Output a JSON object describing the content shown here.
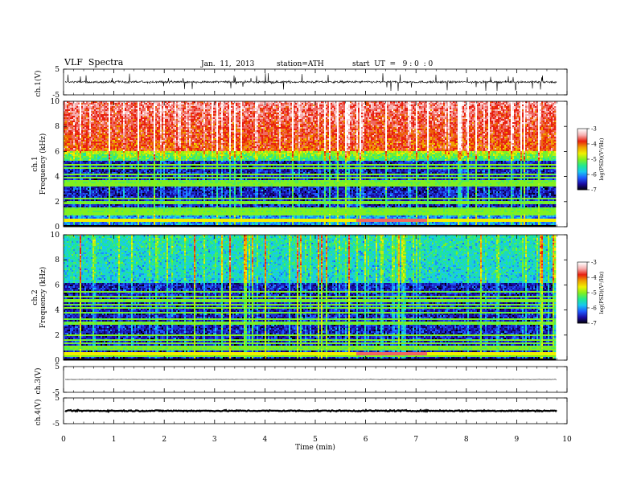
{
  "header": {
    "title": "VLF  Spectra",
    "date": "Jan.  11,  2013",
    "station": "station=ATH",
    "start": "start  UT  =   9 : 0  : 0"
  },
  "chart_data": [
    {
      "type": "line",
      "panel": "ch1-waveform",
      "ylabel": "ch.1(V)",
      "yticks": [
        "5",
        "-5"
      ],
      "ylim": [
        -5,
        5
      ],
      "description_values": {
        "baseline_V": 0,
        "typical_amplitude_V": 1,
        "spike_peak_V": 3.5
      }
    },
    {
      "type": "heatmap",
      "panel": "ch1-spectrogram",
      "ylabel": "ch.1\nFrequency  (kHz)",
      "yticks": [
        "0",
        "2",
        "4",
        "6",
        "8",
        "10"
      ],
      "ylim": [
        0,
        10
      ],
      "colorbar": {
        "label": "log(PSD)(V²/Hz)",
        "ticks": [
          "-3",
          "-4",
          "-5",
          "-6",
          "-7"
        ],
        "range": [
          -7,
          -3
        ]
      },
      "features": {
        "high_band_kHz": [
          6,
          10
        ],
        "high_band_logPSD": -3.5,
        "mid_band_kHz": [
          1,
          5.5
        ],
        "mid_band_logPSD": -6.5,
        "red_line_kHz": 0.5,
        "red_line_start_min": 5.8,
        "red_line_end_min": 7.2
      }
    },
    {
      "type": "heatmap",
      "panel": "ch2-spectrogram",
      "ylabel": "ch.2\nFrequency  (kHz)",
      "yticks": [
        "0",
        "2",
        "4",
        "6",
        "8",
        "10"
      ],
      "ylim": [
        0,
        10
      ],
      "colorbar": {
        "label": "log(PSD)(V²/Hz)",
        "ticks": [
          "-3",
          "-4",
          "-5",
          "-6",
          "-7"
        ],
        "range": [
          -7,
          -3
        ]
      },
      "features": {
        "high_band_logPSD": -5.5,
        "low_band_logPSD": -6.5,
        "red_line_kHz": 0.5,
        "red_line_start_min": 5.8,
        "red_line_end_min": 7.2
      }
    },
    {
      "type": "line",
      "panel": "ch3-waveform",
      "ylabel": "ch.3(V)",
      "yticks": [
        "5",
        "-5"
      ],
      "ylim": [
        -5,
        5
      ],
      "description_values": {
        "baseline_V": 0
      }
    },
    {
      "type": "line",
      "panel": "ch4-waveform",
      "ylabel": "ch.4(V)",
      "yticks": [
        "5",
        "-5"
      ],
      "ylim": [
        -5,
        5
      ],
      "description_values": {
        "baseline_V": 0
      }
    }
  ],
  "xaxis": {
    "label": "Time  (min)",
    "ticks": [
      "0",
      "1",
      "2",
      "3",
      "4",
      "5",
      "6",
      "7",
      "8",
      "9",
      "10"
    ],
    "xlim": [
      0,
      10
    ],
    "data_end_min": 9.8
  },
  "colors": {
    "colormap": [
      "#000000",
      "#1a0aa0",
      "#1e5aff",
      "#18c8f0",
      "#20e890",
      "#80f020",
      "#f0f000",
      "#f0a000",
      "#e82010",
      "#f6b0b0",
      "#ffffff"
    ]
  }
}
